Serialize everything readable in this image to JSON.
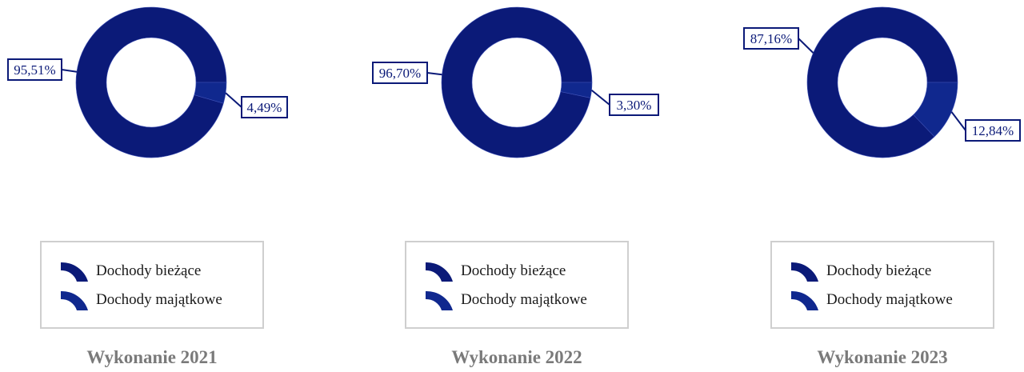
{
  "colors": {
    "bieżące": "#0b1a78",
    "majątkowe": "#10288e",
    "label_border": "#0b1a78",
    "legend_border": "#cfcfcf",
    "title": "#7a7a7a"
  },
  "chart_data": [
    {
      "type": "pie",
      "title": "Wykonanie 2021",
      "categories": [
        "Dochody bieżące",
        "Dochody majątkowe"
      ],
      "values": [
        95.51,
        4.49
      ],
      "data_labels": [
        "95,51%",
        "4,49%"
      ],
      "legend": [
        "Dochody bieżące",
        "Dochody majątkowe"
      ],
      "legend_position": "bottom"
    },
    {
      "type": "pie",
      "title": "Wykonanie 2022",
      "categories": [
        "Dochody bieżące",
        "Dochody majątkowe"
      ],
      "values": [
        96.7,
        3.3
      ],
      "data_labels": [
        "96,70%",
        "3,30%"
      ],
      "legend": [
        "Dochody bieżące",
        "Dochody majątkowe"
      ],
      "legend_position": "bottom"
    },
    {
      "type": "pie",
      "title": "Wykonanie 2023",
      "categories": [
        "Dochody bieżące",
        "Dochody majątkowe"
      ],
      "values": [
        87.16,
        12.84
      ],
      "data_labels": [
        "87,16%",
        "12,84%"
      ],
      "legend": [
        "Dochody bieżące",
        "Dochody majątkowe"
      ],
      "legend_position": "bottom"
    }
  ]
}
